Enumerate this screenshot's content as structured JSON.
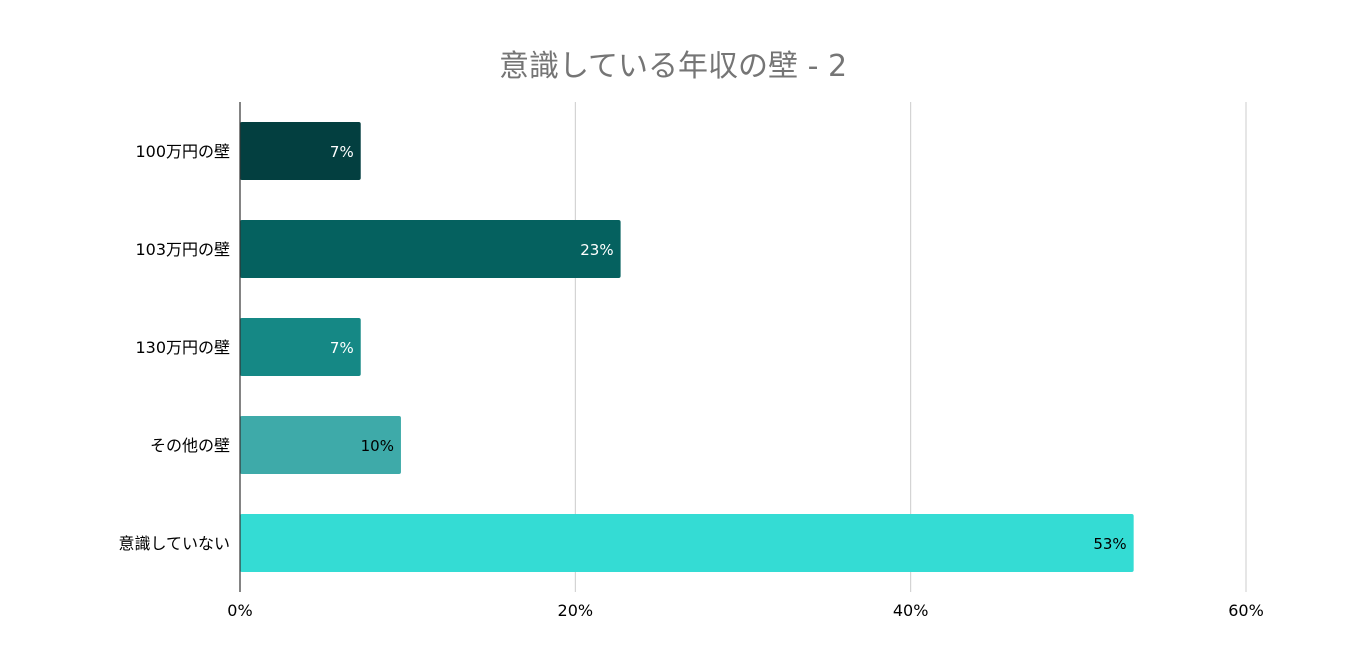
{
  "chart_data": {
    "type": "bar",
    "orientation": "horizontal",
    "title": "意識している年収の壁 - 2",
    "xlabel": "",
    "ylabel": "",
    "categories": [
      "100万円の壁",
      "103万円の壁",
      "130万円の壁",
      "その他の壁",
      "意識していない"
    ],
    "values": [
      7.2,
      22.7,
      7.2,
      9.6,
      53.3
    ],
    "data_labels": [
      "7%",
      "23%",
      "7%",
      "10%",
      "53%"
    ],
    "xlim": [
      0,
      60
    ],
    "xticks": [
      0,
      20,
      40,
      60
    ],
    "xtick_labels": [
      "0%",
      "20%",
      "40%",
      "60%"
    ],
    "grid": true,
    "legend": "none",
    "colors": [
      "#033f40",
      "#05615f",
      "#158885",
      "#3eaaa9",
      "#34dcd4"
    ],
    "label_colors": [
      "#ffffff",
      "#ffffff",
      "#ffffff",
      "#000000",
      "#000000"
    ]
  }
}
